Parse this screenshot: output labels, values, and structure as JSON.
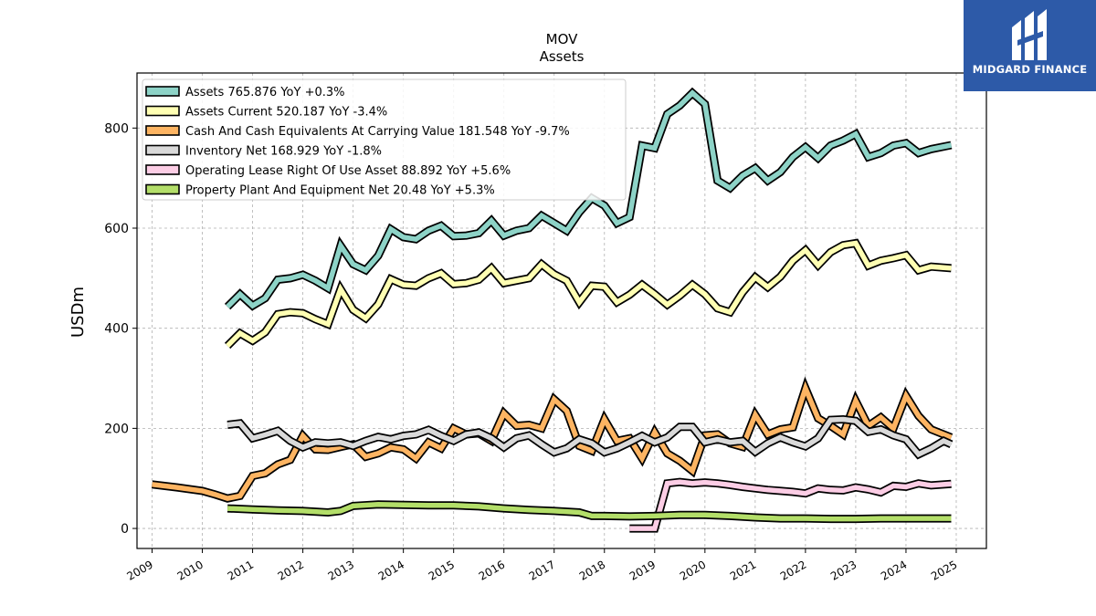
{
  "logo": {
    "text": "MIDGARD FINANCE",
    "icon": "midgard-logo-icon",
    "background": "#2d5aa8"
  },
  "chart_data": {
    "type": "line",
    "title": "MOV",
    "subtitle": "Assets",
    "ylabel": "USDm",
    "xlabel": "",
    "xlim": [
      2008.7,
      2025.6
    ],
    "ylim": [
      -40,
      910
    ],
    "x_ticks": [
      "2009",
      "2010",
      "2011",
      "2012",
      "2013",
      "2014",
      "2015",
      "2016",
      "2017",
      "2018",
      "2019",
      "2020",
      "2021",
      "2022",
      "2023",
      "2024",
      "2025"
    ],
    "y_ticks": [
      0,
      200,
      400,
      600,
      800
    ],
    "grid": true,
    "legend_position": "top-left",
    "series": [
      {
        "name": "Assets  765.876 YoY +0.3%",
        "color": "#8dd3c7",
        "points": [
          [
            2010.5,
            443
          ],
          [
            2010.75,
            468
          ],
          [
            2011,
            445
          ],
          [
            2011.25,
            460
          ],
          [
            2011.5,
            497
          ],
          [
            2011.75,
            500
          ],
          [
            2012,
            507
          ],
          [
            2012.25,
            495
          ],
          [
            2012.5,
            480
          ],
          [
            2012.75,
            565
          ],
          [
            2013,
            528
          ],
          [
            2013.25,
            516
          ],
          [
            2013.5,
            545
          ],
          [
            2013.75,
            598
          ],
          [
            2014,
            582
          ],
          [
            2014.25,
            578
          ],
          [
            2014.5,
            595
          ],
          [
            2014.75,
            605
          ],
          [
            2015,
            584
          ],
          [
            2015.25,
            585
          ],
          [
            2015.5,
            590
          ],
          [
            2015.75,
            615
          ],
          [
            2016,
            585
          ],
          [
            2016.25,
            595
          ],
          [
            2016.5,
            600
          ],
          [
            2016.75,
            625
          ],
          [
            2017,
            610
          ],
          [
            2017.25,
            595
          ],
          [
            2017.5,
            632
          ],
          [
            2017.75,
            660
          ],
          [
            2018,
            645
          ],
          [
            2018.25,
            610
          ],
          [
            2018.5,
            622
          ],
          [
            2018.75,
            765
          ],
          [
            2019,
            760
          ],
          [
            2019.25,
            828
          ],
          [
            2019.5,
            845
          ],
          [
            2019.75,
            870
          ],
          [
            2020,
            848
          ],
          [
            2020.25,
            695
          ],
          [
            2020.5,
            680
          ],
          [
            2020.75,
            705
          ],
          [
            2021,
            720
          ],
          [
            2021.25,
            695
          ],
          [
            2021.5,
            712
          ],
          [
            2021.75,
            742
          ],
          [
            2022,
            762
          ],
          [
            2022.25,
            740
          ],
          [
            2022.5,
            765
          ],
          [
            2022.75,
            775
          ],
          [
            2023,
            788
          ],
          [
            2023.25,
            742
          ],
          [
            2023.5,
            750
          ],
          [
            2023.75,
            765
          ],
          [
            2024,
            770
          ],
          [
            2024.25,
            750
          ],
          [
            2024.5,
            758
          ],
          [
            2024.9,
            766
          ]
        ]
      },
      {
        "name": "Assets Current  520.187 YoY -3.4%",
        "color": "#ffffb3",
        "points": [
          [
            2010.5,
            365
          ],
          [
            2010.75,
            390
          ],
          [
            2011,
            375
          ],
          [
            2011.25,
            392
          ],
          [
            2011.5,
            428
          ],
          [
            2011.75,
            432
          ],
          [
            2012,
            430
          ],
          [
            2012.25,
            418
          ],
          [
            2012.5,
            408
          ],
          [
            2012.75,
            478
          ],
          [
            2013,
            437
          ],
          [
            2013.25,
            420
          ],
          [
            2013.5,
            448
          ],
          [
            2013.75,
            498
          ],
          [
            2014,
            487
          ],
          [
            2014.25,
            485
          ],
          [
            2014.5,
            500
          ],
          [
            2014.75,
            510
          ],
          [
            2015,
            488
          ],
          [
            2015.25,
            490
          ],
          [
            2015.5,
            497
          ],
          [
            2015.75,
            520
          ],
          [
            2016,
            490
          ],
          [
            2016.25,
            495
          ],
          [
            2016.5,
            500
          ],
          [
            2016.75,
            528
          ],
          [
            2017,
            508
          ],
          [
            2017.25,
            495
          ],
          [
            2017.5,
            452
          ],
          [
            2017.75,
            485
          ],
          [
            2018,
            483
          ],
          [
            2018.25,
            452
          ],
          [
            2018.5,
            467
          ],
          [
            2018.75,
            487
          ],
          [
            2019,
            468
          ],
          [
            2019.25,
            447
          ],
          [
            2019.5,
            465
          ],
          [
            2019.75,
            487
          ],
          [
            2020,
            468
          ],
          [
            2020.25,
            440
          ],
          [
            2020.5,
            432
          ],
          [
            2020.75,
            472
          ],
          [
            2021,
            502
          ],
          [
            2021.25,
            482
          ],
          [
            2021.5,
            503
          ],
          [
            2021.75,
            535
          ],
          [
            2022,
            556
          ],
          [
            2022.25,
            526
          ],
          [
            2022.5,
            552
          ],
          [
            2022.75,
            566
          ],
          [
            2023,
            570
          ],
          [
            2023.25,
            525
          ],
          [
            2023.5,
            535
          ],
          [
            2023.75,
            540
          ],
          [
            2024,
            546
          ],
          [
            2024.25,
            516
          ],
          [
            2024.5,
            523
          ],
          [
            2024.9,
            520
          ]
        ]
      },
      {
        "name": "Cash And Cash Equivalents At Carrying Value  181.548 YoY -9.7%",
        "color": "#fdb462",
        "points": [
          [
            2009,
            88
          ],
          [
            2009.5,
            82
          ],
          [
            2010,
            75
          ],
          [
            2010.25,
            68
          ],
          [
            2010.5,
            60
          ],
          [
            2010.75,
            65
          ],
          [
            2011,
            105
          ],
          [
            2011.25,
            110
          ],
          [
            2011.5,
            128
          ],
          [
            2011.75,
            137
          ],
          [
            2012,
            185
          ],
          [
            2012.25,
            158
          ],
          [
            2012.5,
            157
          ],
          [
            2012.75,
            163
          ],
          [
            2013,
            168
          ],
          [
            2013.25,
            143
          ],
          [
            2013.5,
            150
          ],
          [
            2013.75,
            162
          ],
          [
            2014,
            158
          ],
          [
            2014.25,
            140
          ],
          [
            2014.5,
            172
          ],
          [
            2014.75,
            160
          ],
          [
            2015,
            200
          ],
          [
            2015.25,
            188
          ],
          [
            2015.5,
            190
          ],
          [
            2015.75,
            175
          ],
          [
            2016,
            230
          ],
          [
            2016.25,
            205
          ],
          [
            2016.5,
            207
          ],
          [
            2016.75,
            200
          ],
          [
            2017,
            258
          ],
          [
            2017.25,
            235
          ],
          [
            2017.5,
            165
          ],
          [
            2017.75,
            155
          ],
          [
            2018,
            218
          ],
          [
            2018.25,
            175
          ],
          [
            2018.5,
            180
          ],
          [
            2018.75,
            140
          ],
          [
            2019,
            192
          ],
          [
            2019.25,
            150
          ],
          [
            2019.5,
            135
          ],
          [
            2019.75,
            115
          ],
          [
            2020,
            186
          ],
          [
            2020.25,
            188
          ],
          [
            2020.5,
            170
          ],
          [
            2020.75,
            163
          ],
          [
            2021,
            227
          ],
          [
            2021.25,
            188
          ],
          [
            2021.5,
            198
          ],
          [
            2021.75,
            202
          ],
          [
            2022,
            280
          ],
          [
            2022.25,
            220
          ],
          [
            2022.5,
            205
          ],
          [
            2022.75,
            188
          ],
          [
            2023,
            255
          ],
          [
            2023.25,
            205
          ],
          [
            2023.5,
            222
          ],
          [
            2023.75,
            200
          ],
          [
            2024,
            265
          ],
          [
            2024.25,
            225
          ],
          [
            2024.5,
            198
          ],
          [
            2024.9,
            182
          ]
        ]
      },
      {
        "name": "Inventory Net  168.929 YoY -1.8%",
        "color": "#d9d9d9",
        "points": [
          [
            2010.5,
            207
          ],
          [
            2010.75,
            210
          ],
          [
            2011,
            180
          ],
          [
            2011.25,
            187
          ],
          [
            2011.5,
            195
          ],
          [
            2011.75,
            175
          ],
          [
            2012,
            162
          ],
          [
            2012.25,
            172
          ],
          [
            2012.5,
            170
          ],
          [
            2012.75,
            172
          ],
          [
            2013,
            165
          ],
          [
            2013.25,
            175
          ],
          [
            2013.5,
            183
          ],
          [
            2013.75,
            178
          ],
          [
            2014,
            185
          ],
          [
            2014.25,
            188
          ],
          [
            2014.5,
            197
          ],
          [
            2014.75,
            185
          ],
          [
            2015,
            175
          ],
          [
            2015.25,
            188
          ],
          [
            2015.5,
            192
          ],
          [
            2015.75,
            180
          ],
          [
            2016,
            162
          ],
          [
            2016.25,
            180
          ],
          [
            2016.5,
            186
          ],
          [
            2016.75,
            168
          ],
          [
            2017,
            152
          ],
          [
            2017.25,
            160
          ],
          [
            2017.5,
            178
          ],
          [
            2017.75,
            170
          ],
          [
            2018,
            152
          ],
          [
            2018.25,
            160
          ],
          [
            2018.5,
            172
          ],
          [
            2018.75,
            185
          ],
          [
            2019,
            172
          ],
          [
            2019.25,
            182
          ],
          [
            2019.5,
            203
          ],
          [
            2019.75,
            203
          ],
          [
            2020,
            172
          ],
          [
            2020.25,
            178
          ],
          [
            2020.5,
            172
          ],
          [
            2020.75,
            175
          ],
          [
            2021,
            153
          ],
          [
            2021.25,
            170
          ],
          [
            2021.5,
            182
          ],
          [
            2021.75,
            172
          ],
          [
            2022,
            164
          ],
          [
            2022.25,
            180
          ],
          [
            2022.5,
            217
          ],
          [
            2022.75,
            218
          ],
          [
            2023,
            215
          ],
          [
            2023.25,
            193
          ],
          [
            2023.5,
            198
          ],
          [
            2023.75,
            186
          ],
          [
            2024,
            178
          ],
          [
            2024.25,
            148
          ],
          [
            2024.5,
            160
          ],
          [
            2024.75,
            175
          ],
          [
            2024.9,
            168
          ]
        ]
      },
      {
        "name": "Operating Lease Right Of Use Asset  88.892 YoY +5.6%",
        "color": "#fccde5",
        "points": [
          [
            2018.5,
            0
          ],
          [
            2019,
            0
          ],
          [
            2019.25,
            90
          ],
          [
            2019.5,
            93
          ],
          [
            2019.75,
            90
          ],
          [
            2020,
            92
          ],
          [
            2020.25,
            90
          ],
          [
            2020.5,
            87
          ],
          [
            2020.75,
            83
          ],
          [
            2021,
            80
          ],
          [
            2021.25,
            77
          ],
          [
            2021.5,
            75
          ],
          [
            2021.75,
            73
          ],
          [
            2022,
            70
          ],
          [
            2022.25,
            80
          ],
          [
            2022.5,
            77
          ],
          [
            2022.75,
            76
          ],
          [
            2023,
            82
          ],
          [
            2023.25,
            78
          ],
          [
            2023.5,
            72
          ],
          [
            2023.75,
            85
          ],
          [
            2024,
            83
          ],
          [
            2024.25,
            90
          ],
          [
            2024.5,
            86
          ],
          [
            2024.9,
            89
          ]
        ]
      },
      {
        "name": "Property Plant And Equipment Net  20.48 YoY +5.3%",
        "color": "#b3de69",
        "points": [
          [
            2010.5,
            40
          ],
          [
            2011,
            38
          ],
          [
            2011.5,
            36
          ],
          [
            2012,
            35
          ],
          [
            2012.5,
            32
          ],
          [
            2012.75,
            35
          ],
          [
            2013,
            45
          ],
          [
            2013.5,
            48
          ],
          [
            2014,
            47
          ],
          [
            2014.5,
            46
          ],
          [
            2015,
            46
          ],
          [
            2015.5,
            44
          ],
          [
            2016,
            40
          ],
          [
            2016.5,
            37
          ],
          [
            2017,
            35
          ],
          [
            2017.5,
            32
          ],
          [
            2017.75,
            25
          ],
          [
            2018,
            25
          ],
          [
            2018.5,
            24
          ],
          [
            2019,
            25
          ],
          [
            2019.5,
            27
          ],
          [
            2020,
            27
          ],
          [
            2020.5,
            25
          ],
          [
            2021,
            22
          ],
          [
            2021.5,
            20
          ],
          [
            2022,
            20
          ],
          [
            2022.5,
            19
          ],
          [
            2023,
            19
          ],
          [
            2023.5,
            20
          ],
          [
            2024,
            20
          ],
          [
            2024.5,
            20
          ],
          [
            2024.9,
            20
          ]
        ]
      }
    ]
  }
}
